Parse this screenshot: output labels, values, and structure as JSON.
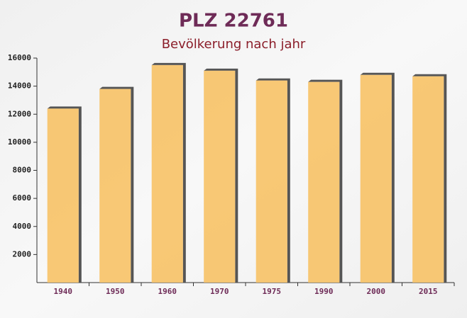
{
  "chart_data": {
    "type": "bar",
    "title": "PLZ 22761",
    "subtitle": "Bevölkerung nach jahr",
    "categories": [
      "1940",
      "1950",
      "1960",
      "1970",
      "1975",
      "1990",
      "2000",
      "2015"
    ],
    "values": [
      12400,
      13800,
      15500,
      15100,
      14400,
      14300,
      14800,
      14700
    ],
    "color": "#f7c266",
    "ylim": [
      0,
      16000
    ],
    "yticks": [
      2000,
      4000,
      6000,
      8000,
      10000,
      12000,
      14000,
      16000
    ],
    "grid": false
  }
}
